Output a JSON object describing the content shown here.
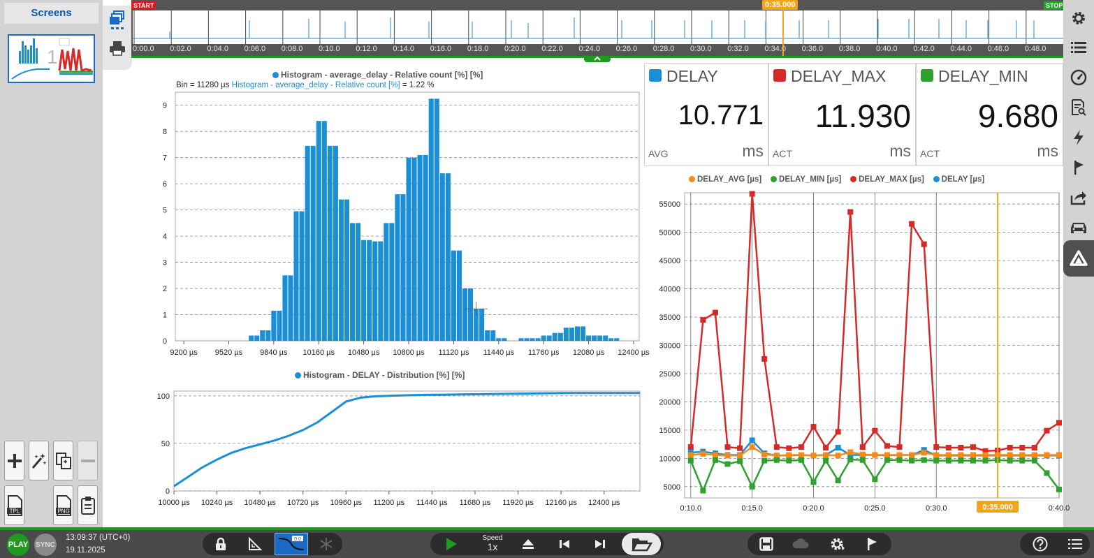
{
  "left_panel": {
    "title": "Screens",
    "thumbnail_number": "1",
    "buttons": [
      "add-icon",
      "magic-wand-icon",
      "duplicate-icon",
      "remove-icon",
      "tpl-icon",
      "png-icon",
      "clipboard-icon"
    ],
    "tpl_label": "TPL",
    "png_label": "PNG"
  },
  "timeline": {
    "start_label": "START",
    "stop_label": "STOP",
    "cursor_label": "0:35.000",
    "ticks": [
      "0:00.0",
      "0:02.0",
      "0:04.0",
      "0:06.0",
      "0:08.0",
      "0:10.0",
      "0:12.0",
      "0:14.0",
      "0:16.0",
      "0:18.0",
      "0:20.0",
      "0:22.0",
      "0:24.0",
      "0:26.0",
      "0:28.0",
      "0:30.0",
      "0:32.0",
      "0:34.0",
      "0:36.0",
      "0:38.0",
      "0:40.0",
      "0:42.0",
      "0:44.0",
      "0:46.0",
      "0:48.0"
    ]
  },
  "histogram": {
    "title": "Histogram - average_delay - Relative count [%] [%]",
    "color": "#1a8fd6",
    "cursor_prefix": "Bin = 11280 µs",
    "cursor_series": "Histogram - average_delay - Relative count [%]",
    "cursor_value": "= 1.22 %"
  },
  "distribution": {
    "title": "Histogram - DELAY - Distribution [%] [%]",
    "color": "#1a8fd6"
  },
  "meters": [
    {
      "name": "DELAY",
      "color": "#1a8fd6",
      "value": "10.771",
      "sub": "AVG",
      "unit": "ms"
    },
    {
      "name": "DELAY_MAX",
      "color": "#d42a2a",
      "value": "11.930",
      "sub": "ACT",
      "unit": "ms"
    },
    {
      "name": "DELAY_MIN",
      "color": "#2ea12e",
      "value": "9.680",
      "sub": "ACT",
      "unit": "ms"
    }
  ],
  "trend": {
    "legend": [
      {
        "name": "DELAY_AVG [µs]",
        "color": "#f28a1c"
      },
      {
        "name": "DELAY_MIN [µs]",
        "color": "#2ea12e"
      },
      {
        "name": "DELAY_MAX [µs]",
        "color": "#d42a2a"
      },
      {
        "name": "DELAY [µs]",
        "color": "#1a8fd6"
      }
    ],
    "cursor_label": "0:35.000"
  },
  "chart_data": [
    {
      "type": "bar",
      "title": "Histogram - average_delay - Relative count [%] [%]",
      "xlabel": "",
      "ylabel": "",
      "x_unit": "µs",
      "xlim": [
        9140,
        12440
      ],
      "ylim": [
        0,
        9.5
      ],
      "x_ticks": [
        "9200 µs",
        "9520 µs",
        "9840 µs",
        "10160 µs",
        "10480 µs",
        "10800 µs",
        "11120 µs",
        "11440 µs",
        "11760 µs",
        "12080 µs",
        "12400 µs"
      ],
      "y_ticks": [
        "0",
        "1",
        "2",
        "3",
        "4",
        "5",
        "6",
        "7",
        "8",
        "9"
      ],
      "bin_width": 40,
      "bin_centers": [
        9680,
        9720,
        9760,
        9800,
        9840,
        9880,
        9920,
        9960,
        10000,
        10040,
        10080,
        10120,
        10160,
        10200,
        10240,
        10280,
        10320,
        10360,
        10400,
        10440,
        10480,
        10520,
        10560,
        10600,
        10640,
        10680,
        10720,
        10760,
        10800,
        10840,
        10880,
        10920,
        10960,
        11000,
        11040,
        11080,
        11120,
        11160,
        11200,
        11240,
        11280,
        11320,
        11360,
        11400,
        11440,
        11480,
        11520,
        11560,
        11600,
        11640,
        11680,
        11720,
        11760,
        11800,
        11840,
        11880,
        11920,
        11960,
        12000,
        12040,
        12080,
        12120,
        12160,
        12200,
        12240,
        12280,
        12320,
        12360
      ],
      "values": [
        0.2,
        0.2,
        0.4,
        0.4,
        1.15,
        1.15,
        2.5,
        2.5,
        4.95,
        4.95,
        7.45,
        7.45,
        8.4,
        8.4,
        7.45,
        7.45,
        5.4,
        5.4,
        4.5,
        4.5,
        3.85,
        3.85,
        3.8,
        3.8,
        4.5,
        4.5,
        5.6,
        5.6,
        7.0,
        7.0,
        7.1,
        7.1,
        9.25,
        9.25,
        6.4,
        6.4,
        3.45,
        3.45,
        2.0,
        2.0,
        1.22,
        1.22,
        0.4,
        0.4,
        0.1,
        0.1,
        0.0,
        0.0,
        0.1,
        0.1,
        0.1,
        0.1,
        0.2,
        0.2,
        0.3,
        0.3,
        0.5,
        0.5,
        0.55,
        0.55,
        0.2,
        0.2,
        0.2,
        0.2,
        0.1,
        0.1,
        0.0,
        0.0
      ],
      "grid": true
    },
    {
      "type": "line",
      "title": "Histogram - DELAY - Distribution [%] [%]",
      "xlabel": "",
      "ylabel": "",
      "x_unit": "µs",
      "xlim": [
        10000,
        12600
      ],
      "ylim": [
        0,
        105
      ],
      "x_ticks": [
        "10000 µs",
        "10240 µs",
        "10480 µs",
        "10720 µs",
        "10960 µs",
        "11200 µs",
        "11440 µs",
        "11680 µs",
        "11920 µs",
        "12160 µs",
        "12400 µs"
      ],
      "y_ticks": [
        "0",
        "50",
        "100"
      ],
      "x": [
        10000,
        10080,
        10160,
        10240,
        10320,
        10400,
        10480,
        10560,
        10640,
        10720,
        10800,
        10880,
        10960,
        11040,
        11120,
        11200,
        11280,
        11400,
        11600,
        11800,
        12000,
        12200,
        12400,
        12600
      ],
      "y": [
        5,
        15,
        25,
        33,
        40,
        45,
        49,
        53,
        58,
        64,
        72,
        83,
        94,
        98,
        99.5,
        100,
        100.5,
        101,
        101.5,
        102,
        102.5,
        103,
        103,
        103
      ],
      "grid": true
    },
    {
      "type": "line",
      "title": "",
      "xlabel": "",
      "ylabel": "",
      "xlim": [
        "0:09.5",
        "0:40.0"
      ],
      "ylim": [
        3000,
        57000
      ],
      "x_ticks": [
        "0:10.0",
        "0:15.0",
        "0:20.0",
        "0:25.0",
        "0:30.0",
        "0:35.000",
        "0:40.0"
      ],
      "y_ticks": [
        "5000",
        "10000",
        "15000",
        "20000",
        "25000",
        "30000",
        "35000",
        "40000",
        "45000",
        "50000",
        "55000"
      ],
      "x": [
        "0:10.0",
        "0:11.0",
        "0:12.0",
        "0:13.0",
        "0:14.0",
        "0:15.0",
        "0:16.0",
        "0:17.0",
        "0:18.0",
        "0:19.0",
        "0:20.0",
        "0:21.0",
        "0:22.0",
        "0:23.0",
        "0:24.0",
        "0:25.0",
        "0:26.0",
        "0:27.0",
        "0:28.0",
        "0:29.0",
        "0:30.0",
        "0:31.0",
        "0:32.0",
        "0:33.0",
        "0:34.0",
        "0:35.0",
        "0:36.0",
        "0:37.0",
        "0:38.0",
        "0:39.0",
        "0:40.0"
      ],
      "series": [
        {
          "name": "DELAY_MAX [µs]",
          "values": [
            12000,
            34500,
            35800,
            12000,
            11800,
            56800,
            27600,
            12000,
            11800,
            12000,
            15600,
            11900,
            14700,
            53600,
            12000,
            14900,
            12200,
            12000,
            51500,
            47900,
            12000,
            11900,
            11900,
            12000,
            11300,
            11400,
            11900,
            11900,
            11900,
            14900,
            16300
          ]
        },
        {
          "name": "DELAY [µs]",
          "values": [
            11000,
            11200,
            10900,
            10600,
            10600,
            13200,
            10900,
            10500,
            10500,
            10600,
            10500,
            10600,
            11900,
            10600,
            10600,
            10600,
            10500,
            10600,
            10600,
            11500,
            10500,
            10500,
            10500,
            10500,
            10500,
            10500,
            10500,
            10500,
            10500,
            10500,
            10500
          ]
        },
        {
          "name": "DELAY_AVG [µs]",
          "values": [
            10600,
            10800,
            10600,
            10500,
            10500,
            12000,
            10700,
            10500,
            10600,
            10600,
            10500,
            10600,
            10500,
            11100,
            10700,
            10600,
            10600,
            10600,
            10600,
            11000,
            10600,
            10600,
            10600,
            10600,
            10600,
            10600,
            10600,
            10600,
            10600,
            10600,
            10600
          ]
        },
        {
          "name": "DELAY_MIN [µs]",
          "values": [
            9600,
            4300,
            9700,
            9000,
            9500,
            5000,
            9600,
            9700,
            9600,
            9700,
            5800,
            9600,
            6100,
            9800,
            9700,
            6300,
            9700,
            9700,
            9600,
            9700,
            9600,
            9600,
            9600,
            9600,
            9600,
            9700,
            9600,
            9600,
            9600,
            7400,
            4500
          ]
        }
      ],
      "grid": true
    }
  ],
  "bottom_bar": {
    "play_label": "PLAY",
    "sync_label": "SYNC",
    "time": "13:09:37 (UTC+0)",
    "date": "19.11.2025",
    "speed_label": "Speed",
    "speed_value": "1x",
    "zoom_badge": "0.0"
  }
}
